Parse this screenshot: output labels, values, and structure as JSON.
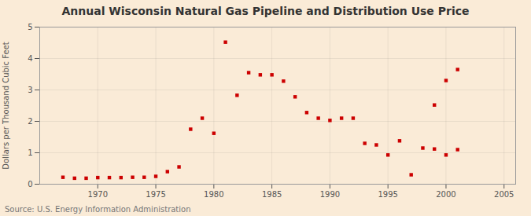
{
  "chart_data": {
    "type": "scatter",
    "title": "Annual Wisconsin Natural Gas Pipeline and Distribution Use Price",
    "ylabel": "Dollars per Thousand Cubic Feet",
    "source": "Source: U.S. Energy Information Administration",
    "x": [
      1967,
      1968,
      1969,
      1970,
      1971,
      1972,
      1973,
      1974,
      1975,
      1976,
      1977,
      1978,
      1979,
      1980,
      1981,
      1982,
      1983,
      1984,
      1985,
      1986,
      1987,
      1988,
      1989,
      1990,
      1991,
      1992,
      1993,
      1994,
      1995,
      1996,
      1997,
      1998,
      1999,
      2000,
      2001,
      1999,
      2000,
      2001
    ],
    "values": [
      0.22,
      0.19,
      0.19,
      0.21,
      0.21,
      0.21,
      0.22,
      0.22,
      0.25,
      0.4,
      0.55,
      1.75,
      2.1,
      1.62,
      4.52,
      2.83,
      3.55,
      3.48,
      3.48,
      3.28,
      2.78,
      2.28,
      2.1,
      2.03,
      2.1,
      2.1,
      1.3,
      1.25,
      0.93,
      1.38,
      0.3,
      1.15,
      1.12,
      0.93,
      1.1,
      2.52,
      3.3,
      3.65
    ],
    "color": "#cc0000",
    "marker": "square",
    "xlim": [
      1965,
      2006
    ],
    "xticks": [
      1970,
      1975,
      1980,
      1985,
      1990,
      1995,
      2000,
      2005
    ],
    "ylim": [
      0,
      5
    ],
    "yticks": [
      0,
      1,
      2,
      3,
      4,
      5
    ],
    "grid": true
  }
}
